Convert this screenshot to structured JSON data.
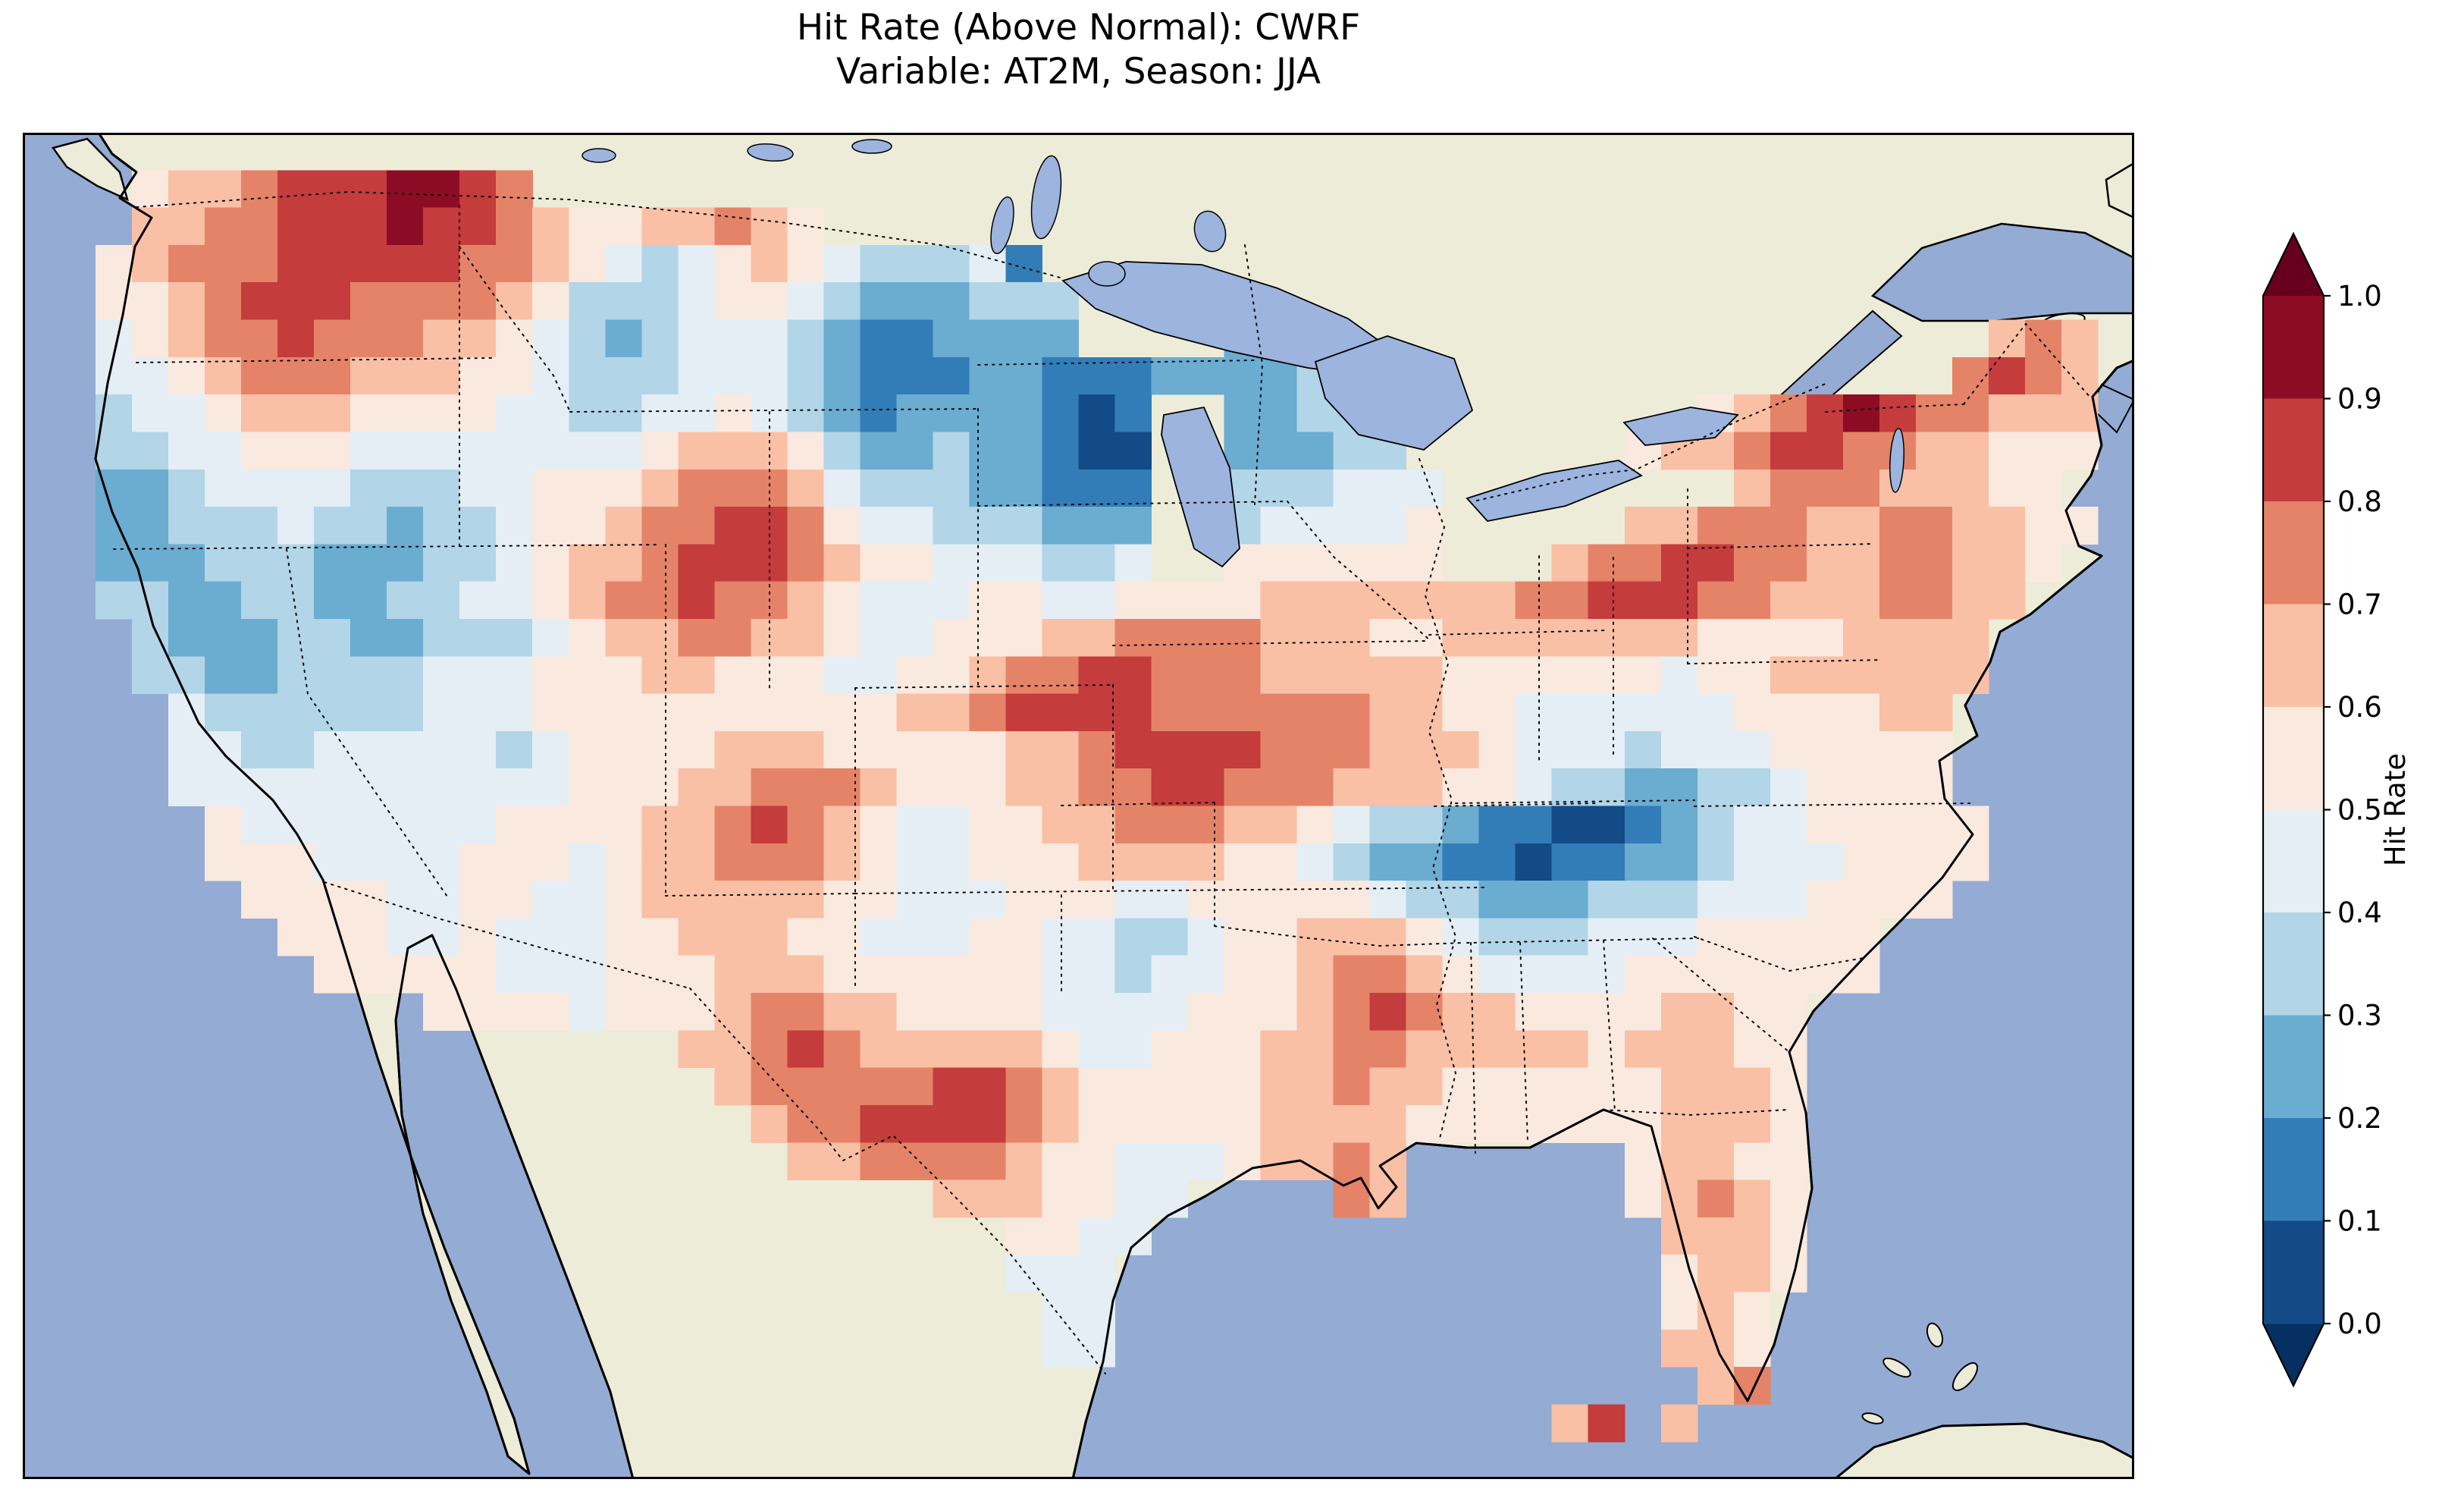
{
  "figure": {
    "background": "#ffffff"
  },
  "title": {
    "line1": "Hit Rate (Above Normal): CWRF",
    "line2": "Variable: AT2M, Season: JJA"
  },
  "map": {
    "ocean_color": "#94abd4",
    "land_color": "#edecd9",
    "lake_color": "#9cb4de",
    "coastline_color": "#000000",
    "state_border_style": "dotted"
  },
  "colorbar": {
    "label": "Hit Rate",
    "tick_labels_top_to_bottom": [
      "1.0",
      "0.9",
      "0.8",
      "0.7",
      "0.6",
      "0.5",
      "0.4",
      "0.3",
      "0.2",
      "0.1",
      "0.0"
    ],
    "band_colors_top_to_bottom": [
      "#8d0c25",
      "#c43c3c",
      "#e58368",
      "#f9c0a5",
      "#fae9df",
      "#e4eef4",
      "#b2d5e7",
      "#6bacd1",
      "#327db8",
      "#134b87"
    ],
    "extend_over_color": "#67001f",
    "extend_under_color": "#053061"
  },
  "chart_data": {
    "type": "heatmap",
    "title": "Hit Rate (Above Normal): CWRF",
    "subtitle": "Variable: AT2M, Season: JJA",
    "metric": "Hit Rate (Above Normal)",
    "model": "CWRF",
    "variable": "AT2M",
    "season": "JJA",
    "region": "Contiguous United States",
    "colormap": "RdBu_r, 10 discrete bins, extend triangles at both ends",
    "value_range": [
      0.0,
      1.0
    ],
    "colorbar_ticks": [
      0.0,
      0.1,
      0.2,
      0.3,
      0.4,
      0.5,
      0.6,
      0.7,
      0.8,
      0.9,
      1.0
    ],
    "legend_position": "right",
    "grid": {
      "cols": 58,
      "rows": 36,
      "cell_encoding": "one character per grid cell; '.' = outside CONUS (masked); digit d = hit-rate bin center (d*0.1+0.05)",
      "bin_centers": [
        0.05,
        0.15,
        0.25,
        0.35,
        0.45,
        0.55,
        0.65,
        0.75,
        0.85,
        0.95
      ],
      "rows_top_to_bottom": [
        "..........................................................",
        "...56678889987............................................",
        "...6677888988765566765....................................",
        "..56777888887765434565433341..............................",
        "..556788877776533345543222333.............................",
        "..456778777665432344432112222....222..................676.",
        "..44567776665543334443211122111222233................7876.",
        "..34456665555443344543212222101..22333........56789877666.",
        "..33445554444444456665322322100..22233......5667887766555.",
        "..22344443334455567776433322111..333444........677766655..",
        "..22333433233455677887544333222..344445.....6677766776655.",
        "..22233322233456678887655444334..555555...67788776677665..",
        "..33223322334456778776544455445555666666677888776667766...",
        "...322233223334566776654455566777766655666666655556666....",
        "...332233334445556655544556778877766666555555455666666....",
        "....4333333444555555555566788887777776655444444555566.....",
        "....4433444443455556665555566788887776665444344455555.....",
        "....4444444444455566777655566778877766655433223345555.....",
        ".....5444444455556678765445566777665433211001234455555....",
        ".....5554444555456677765445556666554322110112234445555....",
        "......55554455445666665544455544555554332223334445555.....",
        ".......55544544455666554445544334556665433344455555.......",
        "........5555544455566655555544344556776544445555555.......",
        "...........55554555677665555444455567876655556655.........",
        "..................6678766666544555667766666566655.........",
        "...................677777887655555667665555556665.........",
        "....................67788887655555666655555556665.........",
        ".....................66777765544456676......56655.........",
        ".........................6665544....76......56765.........",
        "...........................5544..............6665.........",
        "...........................444...............5665.........",
        "............................44...............565..........",
        "............................44...............665..........",
        "..............................................67..........",
        "..........................................68.6............",
        ".........................................................."
      ]
    }
  }
}
